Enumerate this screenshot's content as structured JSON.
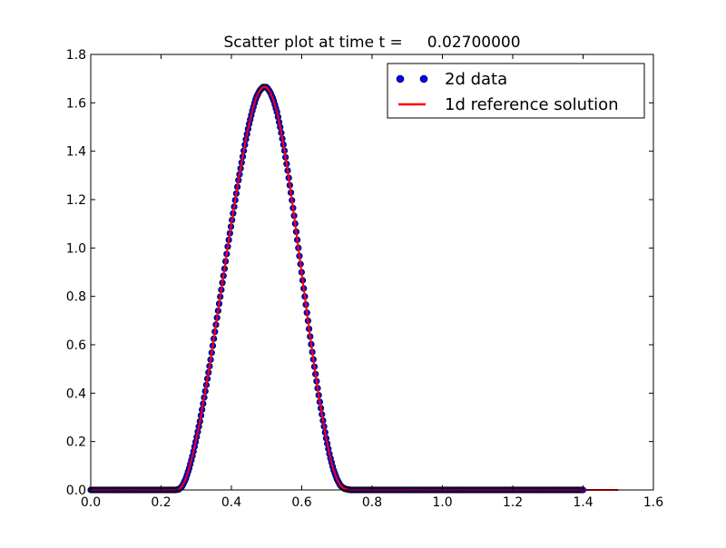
{
  "chart_data": {
    "type": "scatter",
    "title": "Scatter plot at time t =     0.02700000",
    "xlabel": "",
    "ylabel": "",
    "xlim": [
      0.0,
      1.6
    ],
    "ylim": [
      0.0,
      1.8
    ],
    "x_ticks": [
      "0.0",
      "0.2",
      "0.4",
      "0.6",
      "0.8",
      "1.0",
      "1.2",
      "1.4",
      "1.6"
    ],
    "y_ticks": [
      "0.0",
      "0.2",
      "0.4",
      "0.6",
      "0.8",
      "1.0",
      "1.2",
      "1.4",
      "1.6",
      "1.8"
    ],
    "grid": false,
    "legend_position": "upper-right",
    "series": [
      {
        "name": "2d data",
        "kind": "markers",
        "color": "#0000ff",
        "x": [
          0.0,
          0.05,
          0.1,
          0.15,
          0.2,
          0.22,
          0.24,
          0.25,
          0.26,
          0.27,
          0.28,
          0.29,
          0.3,
          0.31,
          0.32,
          0.33,
          0.34,
          0.35,
          0.36,
          0.37,
          0.38,
          0.39,
          0.4,
          0.41,
          0.42,
          0.43,
          0.44,
          0.45,
          0.46,
          0.47,
          0.48,
          0.49,
          0.5,
          0.51,
          0.52,
          0.53,
          0.54,
          0.55,
          0.56,
          0.57,
          0.58,
          0.59,
          0.6,
          0.61,
          0.62,
          0.63,
          0.64,
          0.65,
          0.66,
          0.67,
          0.68,
          0.69,
          0.7,
          0.71,
          0.72,
          0.73,
          0.74,
          0.75,
          0.76,
          0.78,
          0.8,
          0.9,
          1.0,
          1.1,
          1.2,
          1.3,
          1.4
        ],
        "y": [
          0.0,
          0.0,
          0.0,
          0.0,
          0.0,
          0.0,
          0.0,
          0.002,
          0.015,
          0.045,
          0.09,
          0.145,
          0.21,
          0.28,
          0.36,
          0.445,
          0.53,
          0.625,
          0.72,
          0.815,
          0.91,
          1.01,
          1.1,
          1.19,
          1.28,
          1.36,
          1.44,
          1.51,
          1.57,
          1.62,
          1.65,
          1.665,
          1.665,
          1.645,
          1.61,
          1.56,
          1.49,
          1.41,
          1.32,
          1.22,
          1.115,
          1.005,
          0.895,
          0.785,
          0.675,
          0.57,
          0.47,
          0.375,
          0.29,
          0.21,
          0.14,
          0.085,
          0.045,
          0.018,
          0.006,
          0.002,
          0.0,
          0.0,
          0.0,
          0.0,
          0.0,
          0.0,
          0.0,
          0.0,
          0.0,
          0.0,
          0.0
        ]
      },
      {
        "name": "1d reference solution",
        "kind": "line",
        "color": "#ff0000",
        "x": [
          0.0,
          0.2,
          0.24,
          0.25,
          0.26,
          0.27,
          0.28,
          0.29,
          0.3,
          0.31,
          0.32,
          0.33,
          0.34,
          0.35,
          0.36,
          0.37,
          0.38,
          0.39,
          0.4,
          0.41,
          0.42,
          0.43,
          0.44,
          0.45,
          0.46,
          0.47,
          0.48,
          0.49,
          0.5,
          0.51,
          0.52,
          0.53,
          0.54,
          0.55,
          0.56,
          0.57,
          0.58,
          0.59,
          0.6,
          0.61,
          0.62,
          0.63,
          0.64,
          0.65,
          0.66,
          0.67,
          0.68,
          0.69,
          0.7,
          0.71,
          0.72,
          0.73,
          0.74,
          0.75,
          1.0,
          1.5
        ],
        "y": [
          0.0,
          0.0,
          0.0,
          0.002,
          0.015,
          0.045,
          0.09,
          0.145,
          0.21,
          0.28,
          0.36,
          0.445,
          0.53,
          0.625,
          0.72,
          0.815,
          0.91,
          1.01,
          1.1,
          1.19,
          1.28,
          1.36,
          1.44,
          1.51,
          1.57,
          1.62,
          1.65,
          1.665,
          1.665,
          1.645,
          1.61,
          1.56,
          1.49,
          1.41,
          1.32,
          1.22,
          1.115,
          1.005,
          0.895,
          0.785,
          0.675,
          0.57,
          0.47,
          0.375,
          0.29,
          0.21,
          0.14,
          0.085,
          0.045,
          0.018,
          0.006,
          0.002,
          0.0,
          0.0,
          0.0,
          0.0
        ]
      }
    ]
  }
}
